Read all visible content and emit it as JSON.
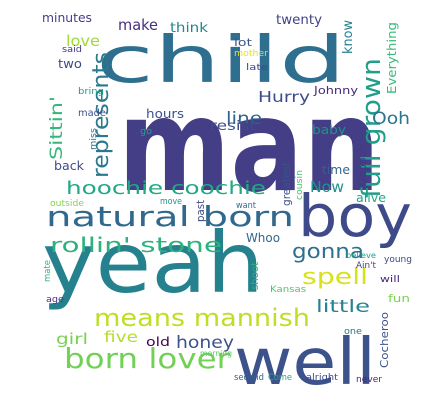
{
  "words": [
    {
      "text": "man",
      "color": "#433e85"
    },
    {
      "text": "yeah",
      "color": "#26818e"
    },
    {
      "text": "child",
      "color": "#2e6e8e"
    },
    {
      "text": "boy",
      "color": "#3e4a89"
    },
    {
      "text": "well",
      "color": "#3b528b"
    },
    {
      "text": "natural born",
      "color": "#31688e"
    },
    {
      "text": "means mannish",
      "color": "#bddf26"
    },
    {
      "text": "born lover",
      "color": "#73d056"
    },
    {
      "text": "full grown",
      "color": "#1f9e89"
    },
    {
      "text": "rollin' stone",
      "color": "#2db27d"
    },
    {
      "text": "hoochie coochie",
      "color": "#22a884"
    },
    {
      "text": "gonna",
      "color": "#2d708e"
    },
    {
      "text": "spell",
      "color": "#d8e219"
    },
    {
      "text": "represents",
      "color": "#2a788e"
    },
    {
      "text": "Hurry",
      "color": "#3e4c8a"
    },
    {
      "text": "line",
      "color": "#33638d"
    },
    {
      "text": "Sittin'",
      "color": "#35b779"
    },
    {
      "text": "Ooh",
      "color": "#2c738e"
    },
    {
      "text": "girl",
      "color": "#7ad151"
    },
    {
      "text": "five",
      "color": "#b5de2b"
    },
    {
      "text": "honey",
      "color": "#3b528b"
    },
    {
      "text": "little",
      "color": "#26828e"
    },
    {
      "text": "Now",
      "color": "#20938c"
    },
    {
      "text": "love",
      "color": "#a2da37"
    },
    {
      "text": "make",
      "color": "#472f7d"
    },
    {
      "text": "think",
      "color": "#25858e"
    },
    {
      "text": "twenty",
      "color": "#414487"
    },
    {
      "text": "know",
      "color": "#27808e"
    },
    {
      "text": "Everything",
      "color": "#3aba76"
    },
    {
      "text": "minutes",
      "color": "#433e85"
    },
    {
      "text": "said",
      "color": "#453882"
    },
    {
      "text": "two",
      "color": "#3e4989"
    },
    {
      "text": "lot",
      "color": "#3b528b"
    },
    {
      "text": "mother",
      "color": "#e5e419"
    },
    {
      "text": "late",
      "color": "#3f4788"
    },
    {
      "text": "hours",
      "color": "#3b528b"
    },
    {
      "text": "Johnny",
      "color": "#472c7a"
    },
    {
      "text": "bring",
      "color": "#1e9c89"
    },
    {
      "text": "made",
      "color": "#3a538b"
    },
    {
      "text": "resist",
      "color": "#3c4f8a"
    },
    {
      "text": "baby",
      "color": "#21918c"
    },
    {
      "text": "back",
      "color": "#3d4d8a"
    },
    {
      "text": "miss",
      "color": "#2a788e"
    },
    {
      "text": "go",
      "color": "#1fa088"
    },
    {
      "text": "greatest",
      "color": "#3b528b"
    },
    {
      "text": "cousin",
      "color": "#48c16e"
    },
    {
      "text": "time",
      "color": "#32658e"
    },
    {
      "text": "Oooooh",
      "color": "#443983"
    },
    {
      "text": "want",
      "color": "#2f6c8e"
    },
    {
      "text": "move",
      "color": "#1f958b"
    },
    {
      "text": "outside",
      "color": "#84d44b"
    },
    {
      "text": "past",
      "color": "#3f4889"
    },
    {
      "text": "alive",
      "color": "#21a685"
    },
    {
      "text": "Whoo",
      "color": "#31688e"
    },
    {
      "text": "shoot",
      "color": "#2ab07f"
    },
    {
      "text": "believe",
      "color": "#1fa287"
    },
    {
      "text": "young",
      "color": "#3f4788"
    },
    {
      "text": "mate",
      "color": "#2eb37c"
    },
    {
      "text": "Ain't",
      "color": "#424086"
    },
    {
      "text": "will",
      "color": "#482576"
    },
    {
      "text": "Kansas",
      "color": "#52c569"
    },
    {
      "text": "fun",
      "color": "#7ad151"
    },
    {
      "text": "age",
      "color": "#46337f"
    },
    {
      "text": "old",
      "color": "#440154"
    },
    {
      "text": "morning",
      "color": "#5ec962"
    },
    {
      "text": "one",
      "color": "#2c728e"
    },
    {
      "text": "Cocheroo",
      "color": "#3b528b"
    },
    {
      "text": "second",
      "color": "#32658e"
    },
    {
      "text": "Come",
      "color": "#22a884"
    },
    {
      "text": "alright",
      "color": "#3e4989"
    },
    {
      "text": "never",
      "color": "#481f70"
    }
  ]
}
